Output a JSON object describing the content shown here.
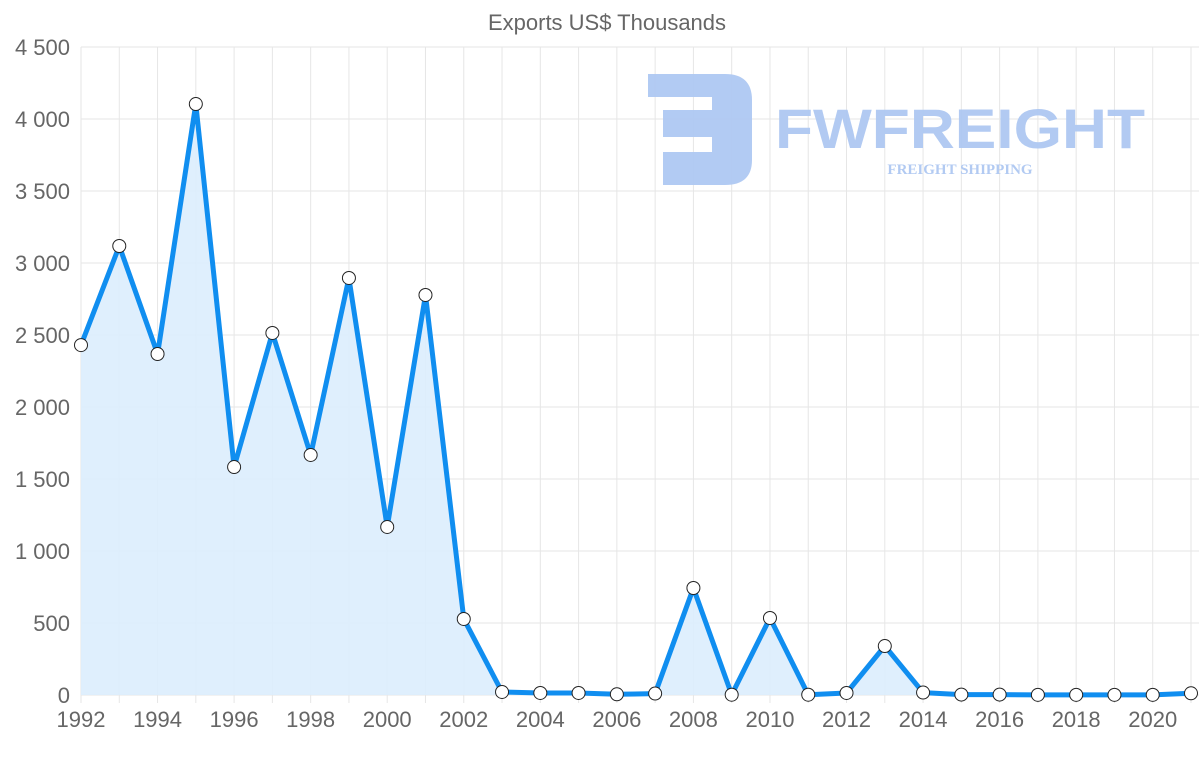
{
  "chart_data": {
    "type": "area",
    "title": "Exports US$ Thousands",
    "xlabel": "",
    "ylabel": "",
    "ylim": [
      0,
      4500
    ],
    "yticks": [
      0,
      500,
      1000,
      1500,
      2000,
      2500,
      3000,
      3500,
      4000,
      4500
    ],
    "ytick_labels": [
      "0",
      "500",
      "1 000",
      "1 500",
      "2 000",
      "2 500",
      "3 000",
      "3 500",
      "4 000",
      "4 500"
    ],
    "xtick_labels": [
      "1992",
      "1994",
      "1996",
      "1998",
      "2000",
      "2002",
      "2004",
      "2006",
      "2008",
      "2010",
      "2012",
      "2014",
      "2016",
      "2018",
      "2020"
    ],
    "grid": true,
    "x": [
      1992,
      1993,
      1994,
      1995,
      1996,
      1997,
      1998,
      1999,
      2000,
      2001,
      2002,
      2003,
      2004,
      2005,
      2006,
      2007,
      2008,
      2009,
      2010,
      2011,
      2012,
      2013,
      2014,
      2015,
      2016,
      2017,
      2018,
      2019,
      2020,
      2021
    ],
    "series": [
      {
        "name": "Exports US$ Thousands",
        "values": [
          2430,
          3118,
          2368,
          4104,
          1583,
          2514,
          1667,
          2896,
          1167,
          2778,
          528,
          21,
          14,
          14,
          5,
          10,
          743,
          2,
          535,
          2,
          14,
          340,
          17,
          3,
          3,
          1,
          1,
          1,
          1,
          12
        ]
      }
    ],
    "colors": {
      "line": "#108ef0",
      "fill": "#dbedfd",
      "grid": "#e6e6e6"
    }
  },
  "watermark": {
    "name": "FWFREIGHT",
    "tagline": "FREIGHT SHIPPING",
    "color": "#aec8f2"
  }
}
